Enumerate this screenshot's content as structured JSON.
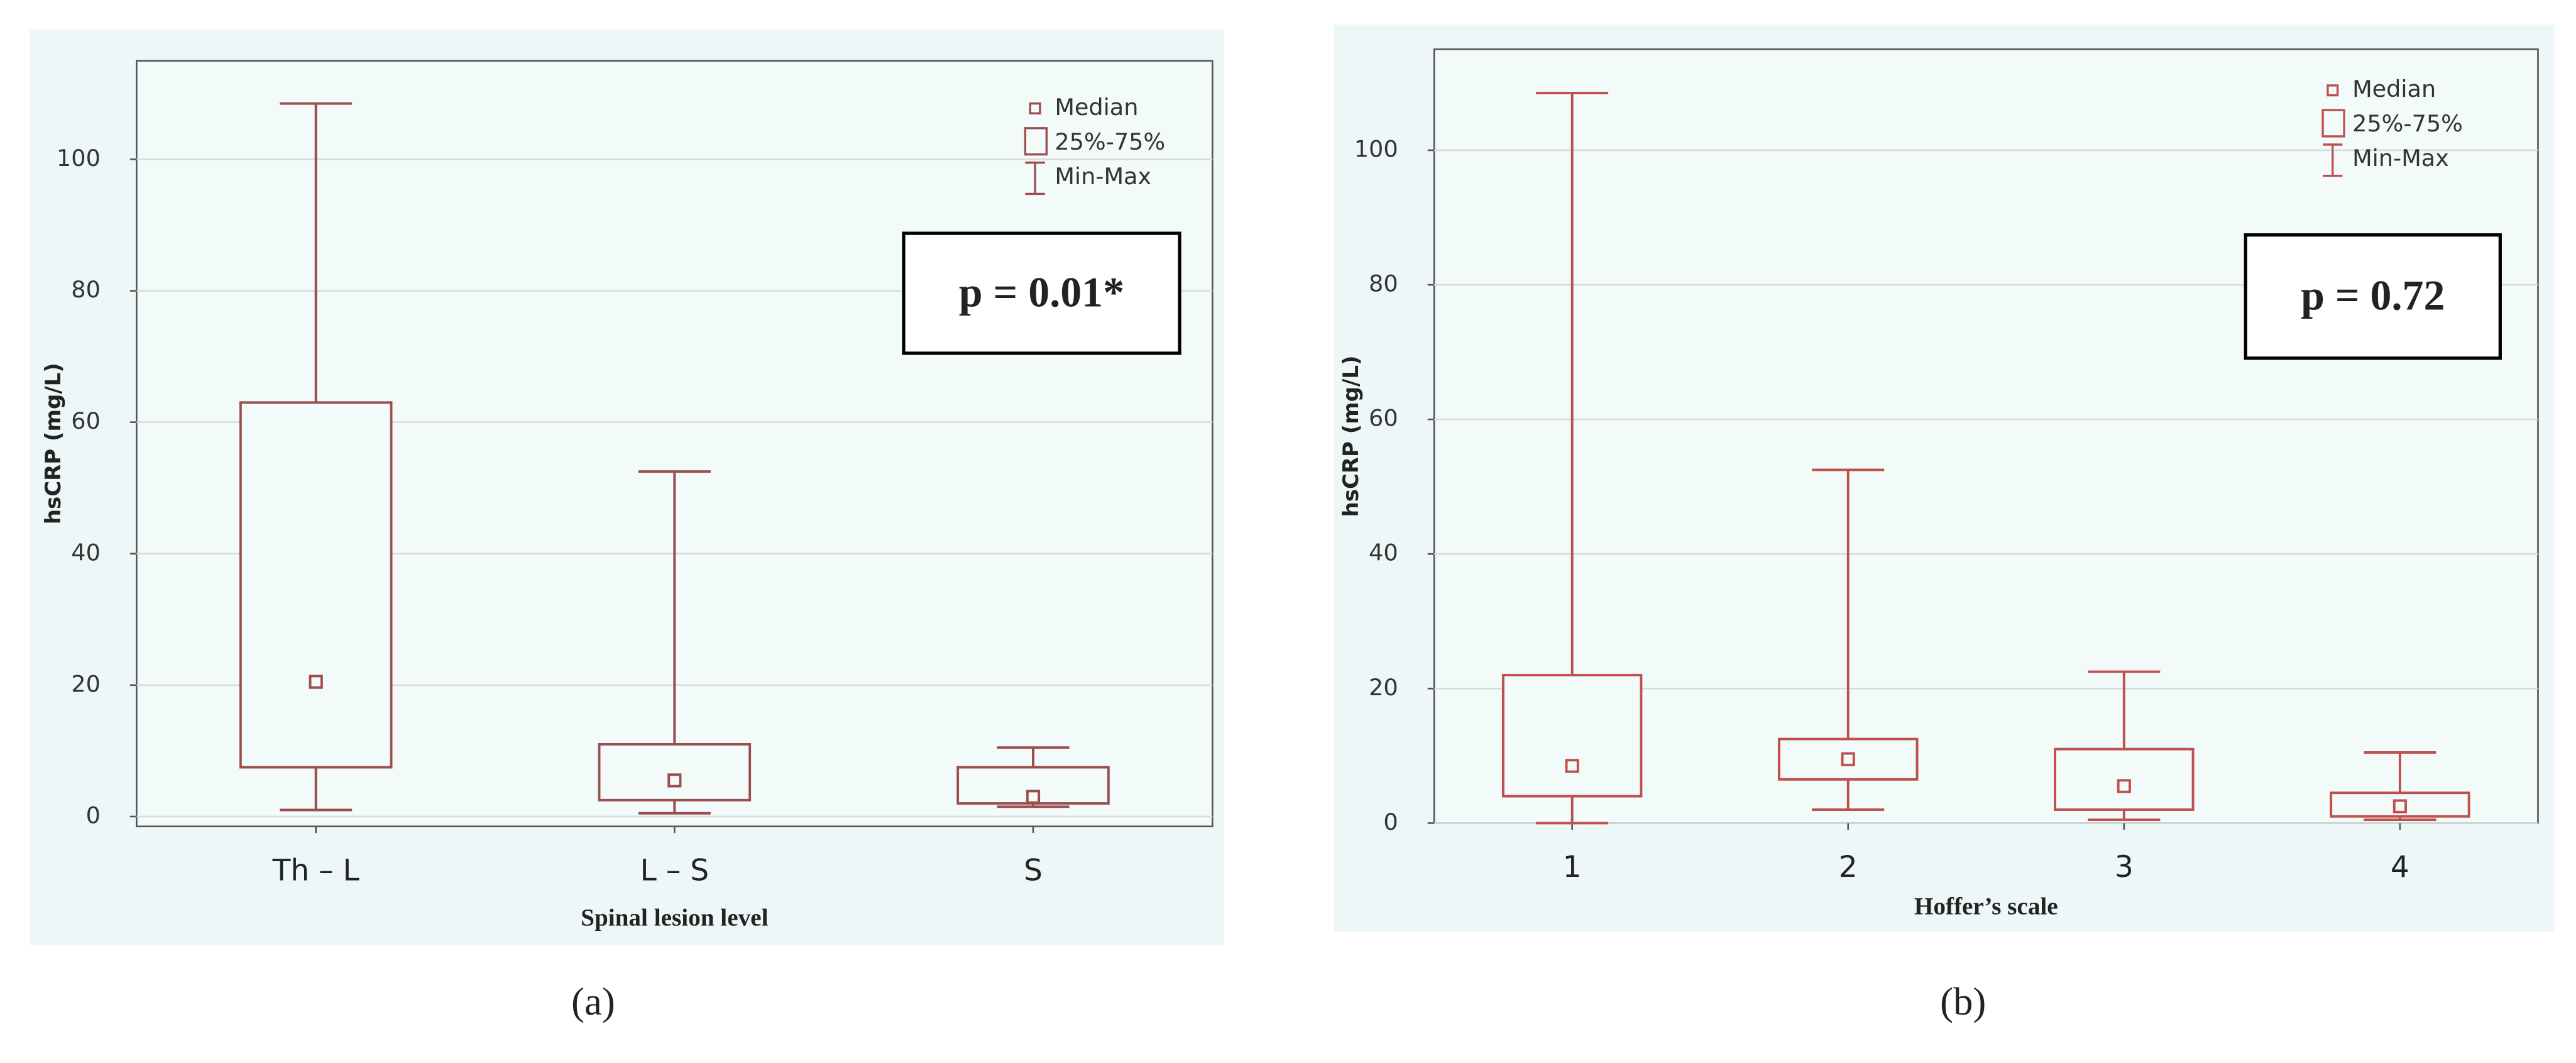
{
  "chart_data": [
    {
      "type": "box",
      "xlabel": "Spinal lesion level",
      "ylabel": "hsCRP (mg/L)",
      "annotation": "p = 0.01*",
      "caption": "(a)",
      "legend": [
        "Median",
        "25%-75%",
        "Min-Max"
      ],
      "color": "#9b4e4e",
      "categories": [
        "Th – L",
        "L – S",
        "S"
      ],
      "min": [
        1,
        0.5,
        1.5
      ],
      "q1": [
        7.5,
        2.5,
        2
      ],
      "median": [
        20.5,
        5.5,
        3
      ],
      "q3": [
        63,
        11,
        7.5
      ],
      "max": [
        108.5,
        52.5,
        10.5
      ],
      "ylim": [
        -1.5,
        115
      ],
      "yticks": [
        0,
        20,
        40,
        60,
        80,
        100
      ],
      "grid": true
    },
    {
      "type": "box",
      "xlabel": "Hoffer’s scale",
      "ylabel": "hsCRP (mg/L)",
      "annotation": "p = 0.72",
      "caption": "(b)",
      "legend": [
        "Median",
        "25%-75%",
        "Min-Max"
      ],
      "color": "#c0504d",
      "categories": [
        "1",
        "2",
        "3",
        "4"
      ],
      "min": [
        0,
        2,
        0.5,
        0.5
      ],
      "q1": [
        4,
        6.5,
        2,
        1
      ],
      "median": [
        8.5,
        9.5,
        5.5,
        2.5
      ],
      "q3": [
        22,
        12.5,
        11,
        4.5
      ],
      "max": [
        108.5,
        52.5,
        22.5,
        10.5
      ],
      "ylim": [
        0,
        115
      ],
      "yticks": [
        0,
        20,
        40,
        60,
        80,
        100
      ],
      "grid": true
    }
  ]
}
